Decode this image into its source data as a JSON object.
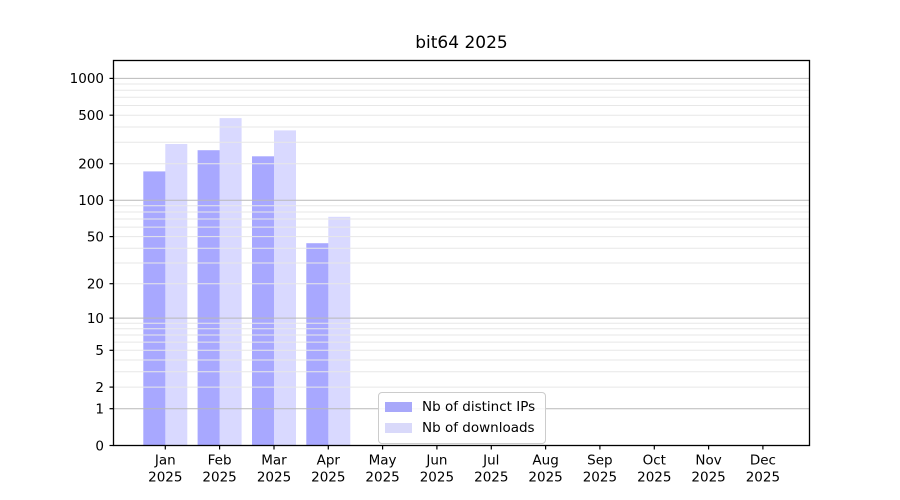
{
  "figure": {
    "background": "#ffffff"
  },
  "chart_data": {
    "type": "bar",
    "title": "bit64 2025",
    "categories": [
      "Jan",
      "Feb",
      "Mar",
      "Apr",
      "May",
      "Jun",
      "Jul",
      "Aug",
      "Sep",
      "Oct",
      "Nov",
      "Dec"
    ],
    "x_sublabel": "2025",
    "series": [
      {
        "name": "Nb of distinct IPs",
        "color": "#a8a8fa",
        "base_color": "#0000ff",
        "alpha": 0.34,
        "values": [
          173,
          258,
          230,
          44,
          null,
          null,
          null,
          null,
          null,
          null,
          null,
          null
        ]
      },
      {
        "name": "Nb of downloads",
        "color": "#d9d9fa",
        "base_color": "#0000ff",
        "alpha": 0.15,
        "values": [
          290,
          473,
          375,
          73,
          null,
          null,
          null,
          null,
          null,
          null,
          null,
          null
        ]
      }
    ],
    "y_ticks": [
      0,
      1,
      2,
      5,
      10,
      20,
      50,
      100,
      200,
      500,
      1000
    ],
    "y_scale": "log1p",
    "ylim": [
      0,
      1400
    ],
    "xlabel": "",
    "ylabel": "",
    "grid": {
      "horizontal": true,
      "major_color": "#b9b9b9",
      "minor_color": "#e7e7e7",
      "grid_above_bars": true
    },
    "legend": {
      "position": "inside-lower-center",
      "entries": [
        "Nb of distinct IPs",
        "Nb of downloads"
      ]
    },
    "spine_color": "#000000"
  }
}
